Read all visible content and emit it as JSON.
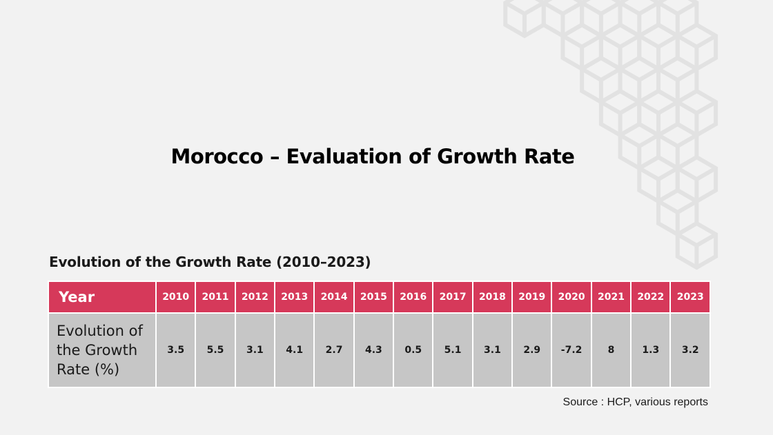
{
  "slide": {
    "title": "Morocco – Evaluation of Growth Rate"
  },
  "table": {
    "caption": "Evolution of the Growth Rate (2010–2023)",
    "row_header_year": "Year",
    "row_header_value": "Evolution of the Growth Rate (%)",
    "years": [
      "2010",
      "2011",
      "2012",
      "2013",
      "2014",
      "2015",
      "2016",
      "2017",
      "2018",
      "2019",
      "2020",
      "2021",
      "2022",
      "2023"
    ],
    "values": [
      "3.5",
      "5.5",
      "3.1",
      "4.1",
      "2.7",
      "4.3",
      "0.5",
      "5.1",
      "3.1",
      "2.9",
      "-7.2",
      "8",
      "1.3",
      "3.2"
    ]
  },
  "source": "Source : HCP, various reports",
  "colors": {
    "header_bg": "#d6395a",
    "cell_bg": "#c6c6c6",
    "page_bg": "#f2f2f2",
    "pattern_stroke": "#e2e2e2"
  }
}
